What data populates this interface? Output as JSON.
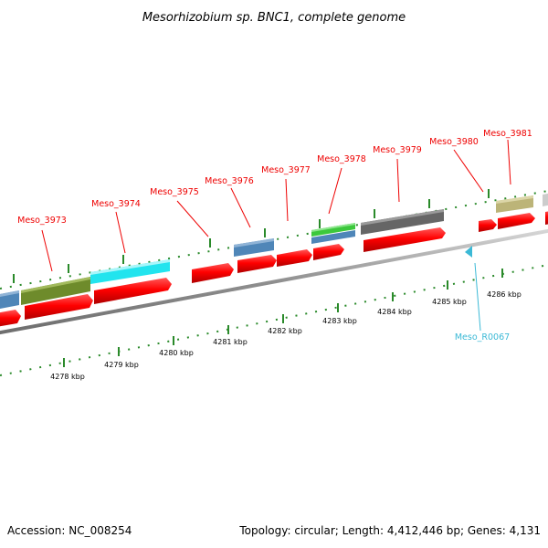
{
  "title": "Mesorhizobium sp. BNC1, complete genome",
  "footer": {
    "accession": "Accession: NC_008254",
    "topology": "Topology: circular; Length: 4,412,446 bp; Genes: 4,131"
  },
  "colors": {
    "label_red": "#ee0000",
    "label_cyan": "#3bb9d6",
    "tick_green": "#2a8a2a",
    "backbone": "#9a9a9a"
  },
  "ruler": {
    "labels": [
      "4278 kbp",
      "4279 kbp",
      "4280 kbp",
      "4281 kbp",
      "4282 kbp",
      "4283 kbp",
      "4284 kbp",
      "4285 kbp",
      "4286 kbp"
    ]
  },
  "gene_labels": [
    "Meso_3973",
    "Meso_3974",
    "Meso_3975",
    "Meso_3976",
    "Meso_3977",
    "Meso_3978",
    "Meso_3979",
    "Meso_3980",
    "Meso_3981"
  ],
  "rna_label": "Meso_R0067",
  "features": [
    {
      "name": "feature-blue-partial",
      "color": "#4f86b8"
    },
    {
      "name": "feature-olive",
      "color": "#6e8b2b"
    },
    {
      "name": "feature-cyan",
      "color": "#22e4ee"
    },
    {
      "name": "feature-blue",
      "color": "#4f86b8"
    },
    {
      "name": "feature-green",
      "color": "#3cc83c"
    },
    {
      "name": "feature-blue-small",
      "color": "#4f86b8"
    },
    {
      "name": "feature-gray",
      "color": "#666666"
    },
    {
      "name": "feature-khaki",
      "color": "#bcb478"
    },
    {
      "name": "feature-silver-partial",
      "color": "#cccccc"
    }
  ]
}
